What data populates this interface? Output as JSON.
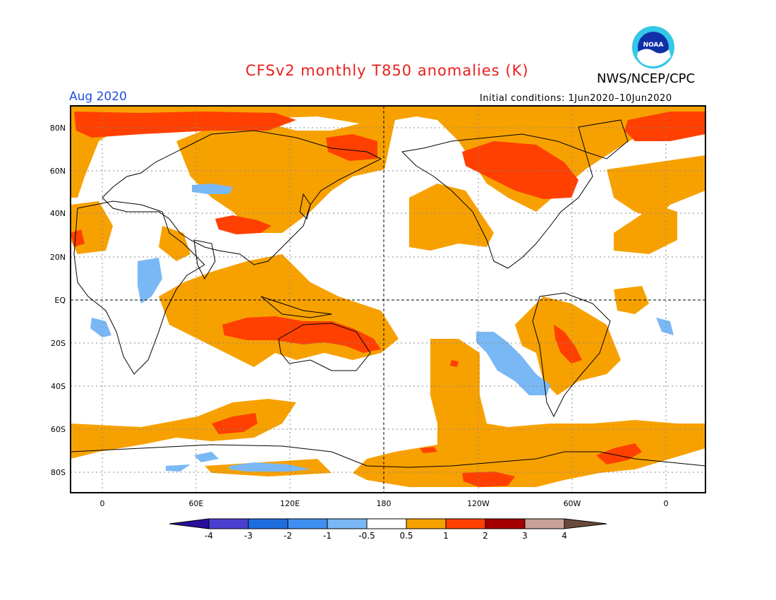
{
  "title": "CFSv2 monthly T850 anomalies (K)",
  "agency": "NWS/NCEP/CPC",
  "period": "Aug 2020",
  "initial_conditions": "Initial conditions: 1Jun2020–10Jun2020",
  "logo_text": "NOAA",
  "map": {
    "lat_labels": [
      "80N",
      "60N",
      "40N",
      "20N",
      "EQ",
      "20S",
      "40S",
      "60S",
      "80S"
    ],
    "lon_labels": [
      "0",
      "60E",
      "120E",
      "180",
      "120W",
      "60W",
      "0"
    ]
  },
  "colorbar": {
    "unit": "K",
    "ticks": [
      "-4",
      "-3",
      "-2",
      "-1",
      "-0.5",
      "0.5",
      "1",
      "2",
      "3",
      "4"
    ],
    "colors": [
      "#2a0f9a",
      "#4a3fcf",
      "#1f6ee0",
      "#3f8ff0",
      "#7ab8f5",
      "#ffffff",
      "#f7a100",
      "#ff4000",
      "#a40000",
      "#c9a196",
      "#6b4a3c"
    ]
  }
}
